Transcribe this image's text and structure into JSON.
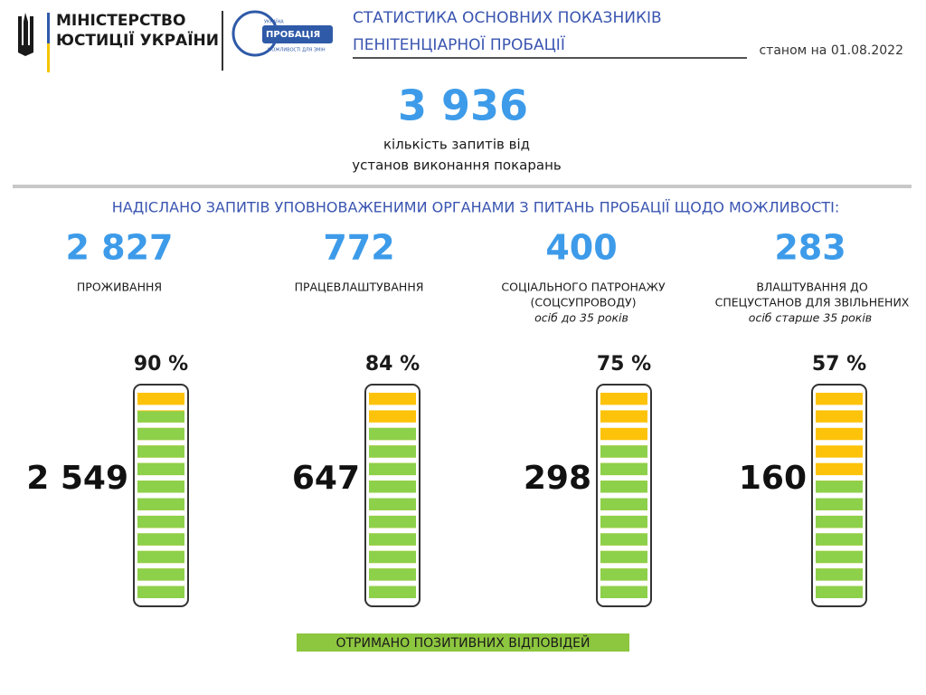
{
  "header": {
    "ministry": [
      "МІНІСТЕРСТВО",
      "ЮСТИЦІЇ УКРАЇНИ"
    ],
    "probation_logo": [
      "УКРАЇНА",
      "ПРОБАЦІЯ",
      "МОЖЛИВОСТІ ДЛЯ ЗМІН"
    ],
    "title": [
      "СТАТИСТИКА ОСНОВНИХ ПОКАЗНИКІВ",
      "ПЕНІТЕНЦІАРНОЇ ПРОБАЦІЇ"
    ],
    "date": "станом на 01.08.2022"
  },
  "total": {
    "value": "3 936",
    "caption": [
      "кількість запитів від",
      "установ виконання покарань"
    ]
  },
  "section_heading": "НАДІСЛАНО ЗАПИТІВ УПОВНОВАЖЕНИМИ ОРГАНАМИ З ПИТАНЬ ПРОБАЦІЇ  ЩОДО МОЖЛИВОСТІ:",
  "items": [
    {
      "value": "2 827",
      "label": [
        "ПРОЖИВАННЯ"
      ],
      "percent": 90,
      "percent_label": "90 %",
      "positive": "2 549"
    },
    {
      "value": "772",
      "label": [
        "ПРАЦЕВЛАШТУВАННЯ"
      ],
      "percent": 84,
      "percent_label": "84 %",
      "positive": "647"
    },
    {
      "value": "400",
      "label": [
        "СОЦІАЛЬНОГО ПАТРОНАЖУ",
        "(СОЦСУПРОВОДУ)"
      ],
      "note": "осіб до 35 років",
      "percent": 75,
      "percent_label": "75 %",
      "positive": "298"
    },
    {
      "value": "283",
      "label": [
        "ВЛАШТУВАННЯ ДО",
        "СПЕЦУСТАНОВ ДЛЯ ЗВІЛЬНЕНИХ"
      ],
      "note": "осіб старше 35 років",
      "percent": 57,
      "percent_label": "57 %",
      "positive": "160"
    }
  ],
  "footer_label": "ОТРИМАНО  ПОЗИТИВНИХ ВІДПОВІДЕЙ"
}
